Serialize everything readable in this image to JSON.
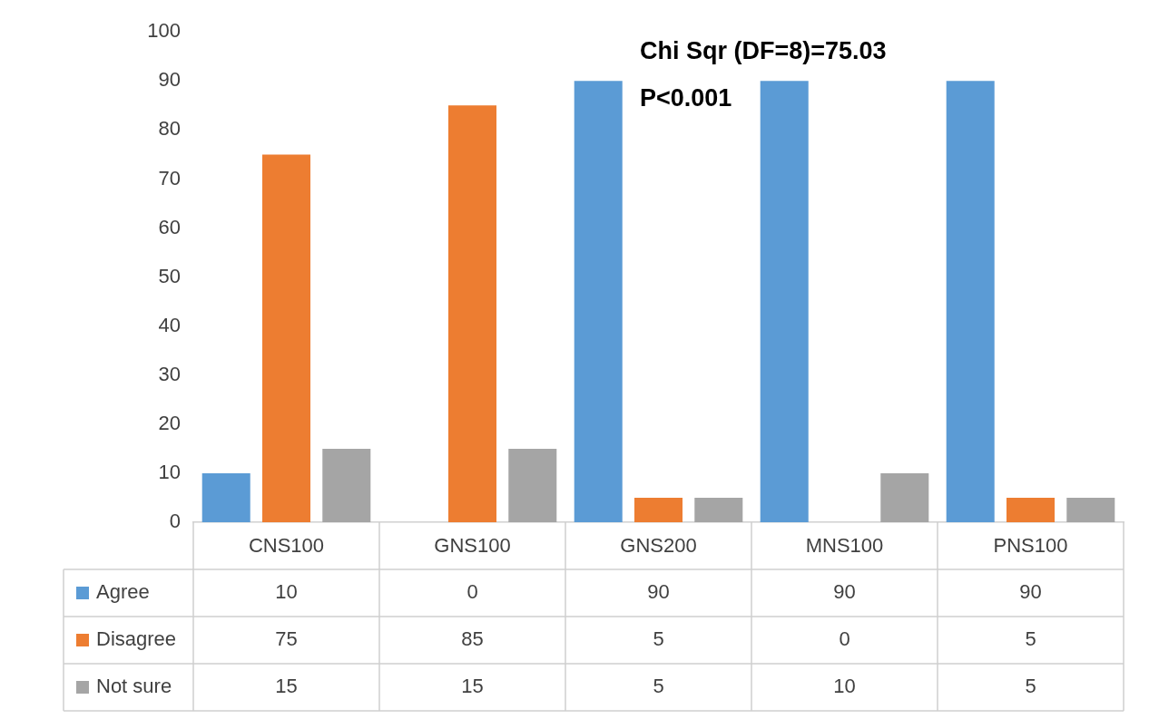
{
  "chart_data": {
    "type": "bar",
    "categories": [
      "CNS100",
      "GNS100",
      "GNS200",
      "MNS100",
      "PNS100"
    ],
    "series": [
      {
        "name": "Agree",
        "color": "#5b9bd5",
        "values": [
          10,
          0,
          90,
          90,
          90
        ]
      },
      {
        "name": "Disagree",
        "color": "#ed7d31",
        "values": [
          75,
          85,
          5,
          0,
          5
        ]
      },
      {
        "name": "Not sure",
        "color": "#a5a5a5",
        "values": [
          15,
          15,
          5,
          10,
          5
        ]
      }
    ],
    "ylim": [
      0,
      100
    ],
    "yticks": [
      0,
      10,
      20,
      30,
      40,
      50,
      60,
      70,
      80,
      90,
      100
    ],
    "grid": false,
    "legend": "bottom",
    "data_labels": true,
    "annotations": [
      "Chi Sqr (DF=8)=75.03",
      "P<0.001"
    ]
  }
}
